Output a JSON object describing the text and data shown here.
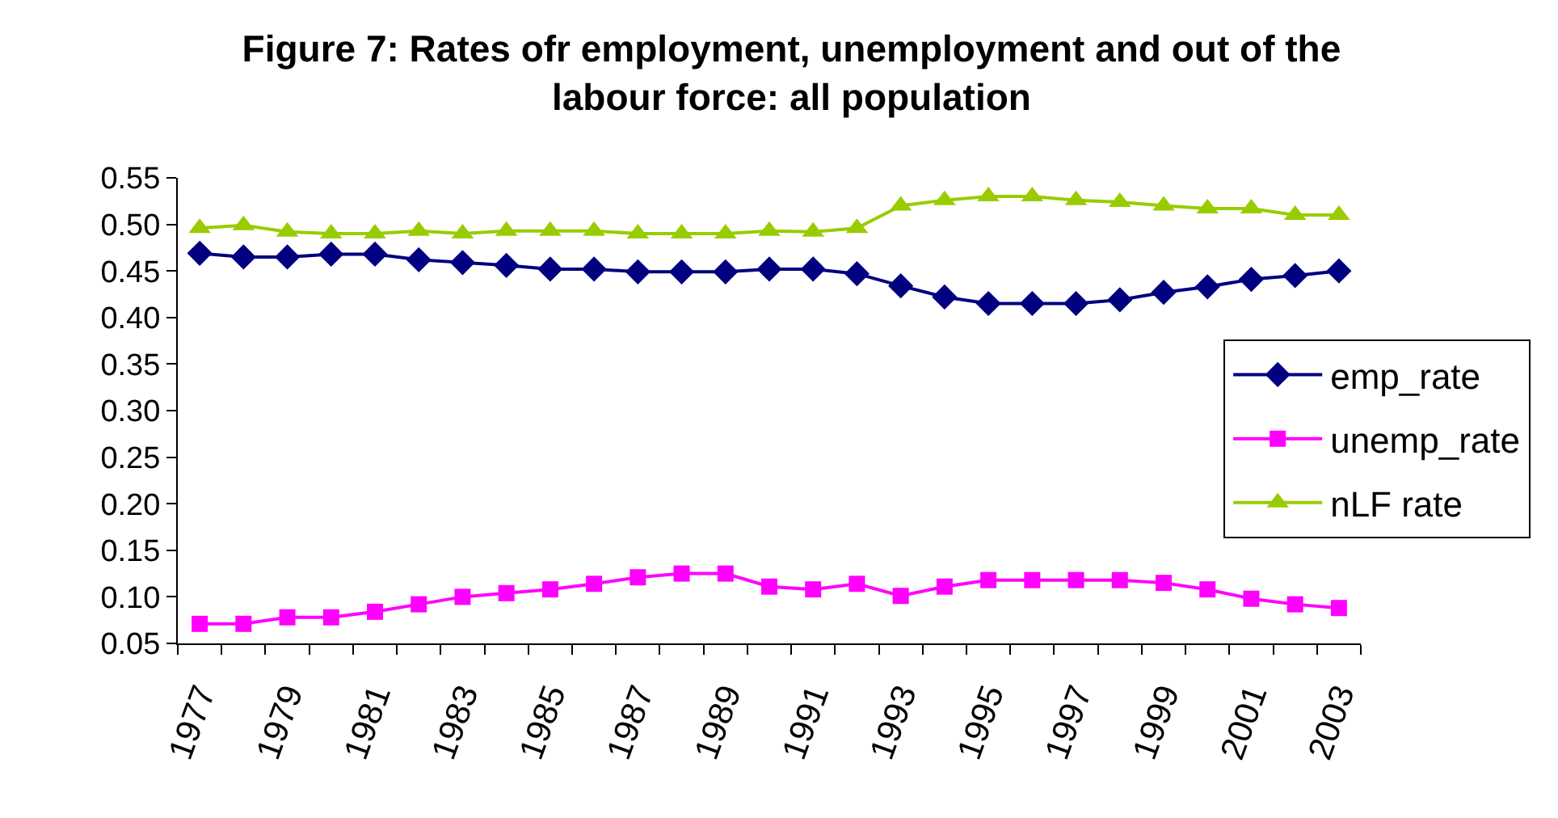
{
  "chart_data": {
    "type": "line",
    "title": "Figure 7: Rates ofr employment, unemployment and out of the labour force: all population",
    "categories": [
      "1977",
      null,
      "1979",
      null,
      "1981",
      null,
      "1983",
      null,
      "1985",
      null,
      "1987",
      null,
      "1989",
      null,
      "1991",
      null,
      "1993",
      null,
      "1995",
      null,
      "1997",
      null,
      "1999",
      null,
      "2001",
      null,
      "2003"
    ],
    "series": [
      {
        "name": "emp_rate",
        "color": "#000080",
        "marker": "diamond",
        "values": [
          0.469,
          0.465,
          0.465,
          0.468,
          0.468,
          0.462,
          0.459,
          0.456,
          0.452,
          0.452,
          0.449,
          0.449,
          0.449,
          0.452,
          0.452,
          0.447,
          0.434,
          0.422,
          0.415,
          0.415,
          0.415,
          0.419,
          0.427,
          0.433,
          0.441,
          0.445,
          0.45
        ]
      },
      {
        "name": "unemp_rate",
        "color": "#ff00ff",
        "marker": "square",
        "values": [
          0.071,
          0.071,
          0.078,
          0.078,
          0.084,
          0.092,
          0.1,
          0.104,
          0.108,
          0.114,
          0.121,
          0.125,
          0.125,
          0.111,
          0.108,
          0.114,
          0.101,
          0.111,
          0.118,
          0.118,
          0.118,
          0.118,
          0.115,
          0.108,
          0.098,
          0.092,
          0.088
        ]
      },
      {
        "name": "nLF rate",
        "color": "#99cc00",
        "marker": "triangle",
        "values": [
          0.496,
          0.499,
          0.492,
          0.49,
          0.49,
          0.493,
          0.49,
          0.493,
          0.493,
          0.493,
          0.49,
          0.49,
          0.49,
          0.493,
          0.492,
          0.496,
          0.52,
          0.526,
          0.53,
          0.53,
          0.526,
          0.524,
          0.52,
          0.517,
          0.517,
          0.51,
          0.51
        ]
      }
    ],
    "ylim": [
      0.05,
      0.55
    ],
    "yticks": [
      0.05,
      {
        "value": 0.1,
        "label": "0.10"
      },
      0.15,
      {
        "value": 0.2,
        "label": "0.20"
      },
      0.25,
      {
        "value": 0.3,
        "label": "0.30"
      },
      0.35,
      {
        "value": 0.4,
        "label": "0.40"
      },
      0.45,
      {
        "value": 0.5,
        "label": "0.50"
      },
      0.55
    ],
    "legend": "right"
  }
}
